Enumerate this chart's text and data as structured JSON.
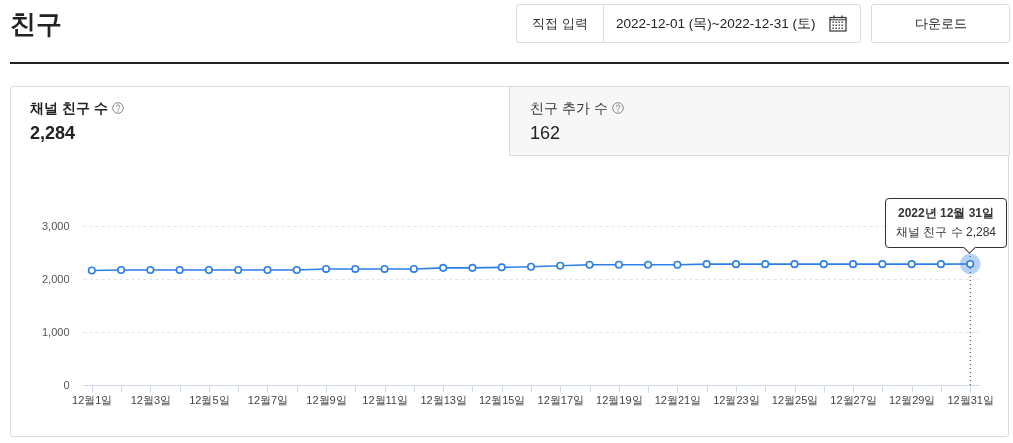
{
  "chart_data": {
    "type": "line",
    "title": "친구",
    "categories": [
      "12월1일",
      null,
      "12월3일",
      null,
      "12월5일",
      null,
      "12월7일",
      null,
      "12월9일",
      null,
      "12월11일",
      null,
      "12월13일",
      null,
      "12월15일",
      null,
      "12월17일",
      null,
      "12월19일",
      null,
      "12월21일",
      null,
      "12월23일",
      null,
      "12월25일",
      null,
      "12월27일",
      null,
      "12월29일",
      null,
      "12월31일"
    ],
    "series": [
      {
        "color": "#2d7fe6",
        "values": [
          2160,
          2170,
          2170,
          2170,
          2170,
          2170,
          2170,
          2170,
          2190,
          2190,
          2190,
          2190,
          2210,
          2210,
          2220,
          2230,
          2250,
          2270,
          2270,
          2270,
          2270,
          2280,
          2280,
          2280,
          2280,
          2280,
          2280,
          2280,
          2280,
          2280,
          2284
        ]
      }
    ],
    "ylim": [
      0,
      3000
    ],
    "yticks": [
      0,
      {
        "value": 1000,
        "label": "1,000"
      },
      {
        "value": 2000,
        "label": "2,000"
      },
      {
        "value": 3000,
        "label": "3,000"
      }
    ],
    "grid": "y",
    "marker": "circle",
    "line_style": "solid",
    "ref_lines": [
      {
        "axis": "x",
        "value": "12월31일",
        "color": "#333333",
        "line_style": "dotted"
      }
    ],
    "annotations": [
      "직접 입력",
      "2022-12-01 (목)~2022-12-31 (토)",
      "다운로드",
      "채널 친구 수",
      "2,284",
      "친구 추가 수",
      "162",
      "2022년 12월 31일",
      {
        "text": "채널 친구 수 2,284",
        "x": "12월31일",
        "y": 2284
      }
    ]
  }
}
